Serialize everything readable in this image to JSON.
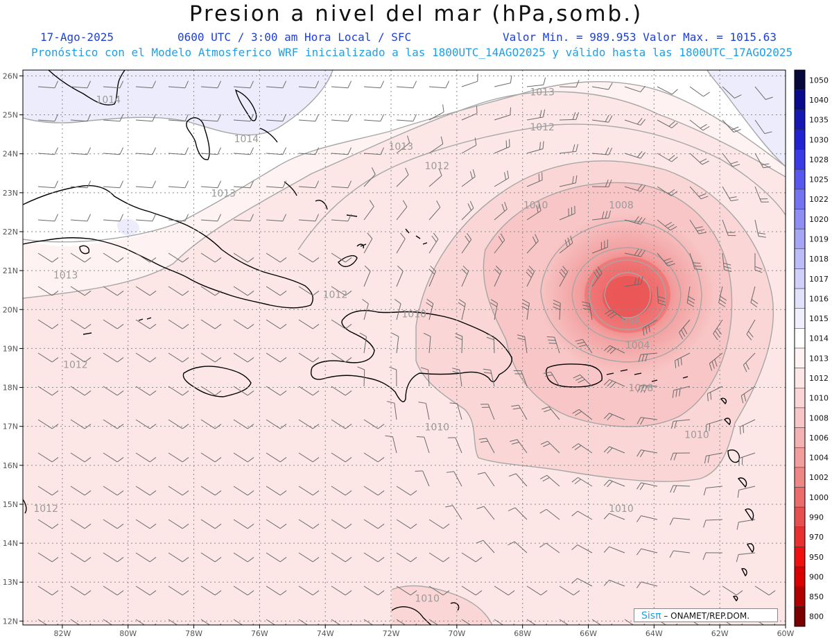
{
  "header": {
    "title": "Presion a nivel del mar (hPa,somb.)",
    "date": "17-Ago-2025",
    "time": "0600 UTC / 3:00 am Hora Local / SFC",
    "range": "Valor Min. = 989.953  Valor Max. = 1015.63",
    "model": "Pronóstico con el Modelo Atmosferico WRF inicializado a las 1800UTC_14AGO2025 y válido hasta las  1800UTC_17AGO2025"
  },
  "axes": {
    "lon_labels": [
      "82W",
      "80W",
      "78W",
      "76W",
      "74W",
      "72W",
      "70W",
      "68W",
      "66W",
      "64W",
      "62W",
      "60W"
    ],
    "lat_labels": [
      "26N",
      "25N",
      "24N",
      "23N",
      "22N",
      "21N",
      "20N",
      "19N",
      "18N",
      "17N",
      "16N",
      "15N",
      "14N",
      "13N",
      "12N"
    ]
  },
  "contour_labels": [
    {
      "text": "1014",
      "lon": -80.6,
      "lat": 25.3
    },
    {
      "text": "1014",
      "lon": -76.4,
      "lat": 24.3
    },
    {
      "text": "1013",
      "lon": -67.4,
      "lat": 25.5
    },
    {
      "text": "1012",
      "lon": -67.4,
      "lat": 24.6
    },
    {
      "text": "1013",
      "lon": -71.7,
      "lat": 24.1
    },
    {
      "text": "1012",
      "lon": -70.6,
      "lat": 23.6
    },
    {
      "text": "1013",
      "lon": -77.1,
      "lat": 22.9
    },
    {
      "text": "1010",
      "lon": -67.6,
      "lat": 22.6
    },
    {
      "text": "1008",
      "lon": -65.0,
      "lat": 22.6
    },
    {
      "text": "1013",
      "lon": -81.9,
      "lat": 20.8
    },
    {
      "text": "1012",
      "lon": -73.7,
      "lat": 20.3
    },
    {
      "text": "1010",
      "lon": -71.3,
      "lat": 19.8
    },
    {
      "text": "996",
      "lon": -64.7,
      "lat": 19.6
    },
    {
      "text": "1004",
      "lon": -64.5,
      "lat": 19.0
    },
    {
      "text": "1008",
      "lon": -64.4,
      "lat": 17.9
    },
    {
      "text": "1012",
      "lon": -81.6,
      "lat": 18.5
    },
    {
      "text": "1010",
      "lon": -70.6,
      "lat": 16.9
    },
    {
      "text": "1010",
      "lon": -62.7,
      "lat": 16.7
    },
    {
      "text": "1010",
      "lon": -65.0,
      "lat": 14.8
    },
    {
      "text": "1012",
      "lon": -82.5,
      "lat": 14.8
    },
    {
      "text": "1010",
      "lon": -70.9,
      "lat": 12.5
    }
  ],
  "colorbar": {
    "levels": [
      "1050",
      "1040",
      "1035",
      "1030",
      "1028",
      "1025",
      "1022",
      "1020",
      "1019",
      "1018",
      "1017",
      "1016",
      "1015",
      "1014",
      "1013",
      "1012",
      "1010",
      "1008",
      "1006",
      "1004",
      "1002",
      "1000",
      "990",
      "970",
      "950",
      "900",
      "850",
      "800"
    ],
    "colors": [
      "#08083a",
      "#0a0a8c",
      "#1616b4",
      "#2222d2",
      "#3a3ae6",
      "#5858f0",
      "#7474f2",
      "#8e8ef4",
      "#a6a6f6",
      "#bcbcf8",
      "#d0d0fa",
      "#e2e2fc",
      "#efeffe",
      "#ffffff",
      "#fff2f2",
      "#fde6e6",
      "#fbd6d6",
      "#f8c6c6",
      "#f5b2b2",
      "#f29e9e",
      "#ef8686",
      "#ec6c6c",
      "#e85050",
      "#e83030",
      "#f01010",
      "#d80000",
      "#b00000",
      "#7a0000"
    ]
  },
  "low_center": {
    "lon": -64.7,
    "lat": 20.3
  },
  "credit": {
    "brand": "Sisπ",
    "text": "– ONAMET/REP.DOM."
  }
}
